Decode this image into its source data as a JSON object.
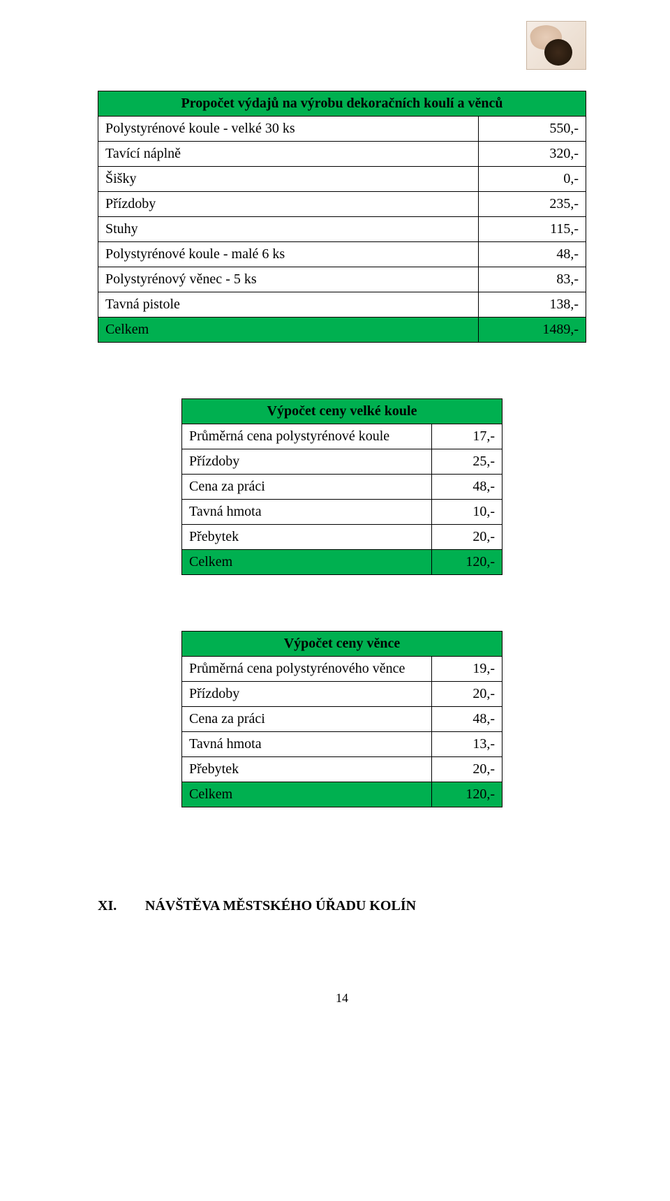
{
  "colors": {
    "header_bg": "#00b050",
    "border": "#000000",
    "page_bg": "#ffffff",
    "text": "#000000"
  },
  "table1": {
    "title": "Propočet výdajů na výrobu dekoračních koulí a věnců",
    "rows": [
      {
        "label": "Polystyrénové koule - velké 30 ks",
        "value": "550,-"
      },
      {
        "label": "Tavící náplně",
        "value": "320,-"
      },
      {
        "label": "Šišky",
        "value": "0,-"
      },
      {
        "label": "Přízdoby",
        "value": "235,-"
      },
      {
        "label": "Stuhy",
        "value": "115,-"
      },
      {
        "label": "Polystyrénové koule - malé 6 ks",
        "value": "48,-"
      },
      {
        "label": "Polystyrénový věnec - 5 ks",
        "value": "83,-"
      },
      {
        "label": "Tavná pistole",
        "value": "138,-"
      }
    ],
    "total": {
      "label": "Celkem",
      "value": "1489,-"
    }
  },
  "table2": {
    "title": "Výpočet ceny velké koule",
    "rows": [
      {
        "label": "Průměrná cena polystyrénové koule",
        "value": "17,-"
      },
      {
        "label": "Přízdoby",
        "value": "25,-"
      },
      {
        "label": "Cena za práci",
        "value": "48,-"
      },
      {
        "label": "Tavná hmota",
        "value": "10,-"
      },
      {
        "label": "Přebytek",
        "value": "20,-"
      }
    ],
    "total": {
      "label": "Celkem",
      "value": "120,-"
    }
  },
  "table3": {
    "title": "Výpočet ceny věnce",
    "rows": [
      {
        "label": "Průměrná cena polystyrénového věnce",
        "value": "19,-"
      },
      {
        "label": "Přízdoby",
        "value": "20,-"
      },
      {
        "label": "Cena za práci",
        "value": "48,-"
      },
      {
        "label": "Tavná hmota",
        "value": "13,-"
      },
      {
        "label": "Přebytek",
        "value": "20,-"
      }
    ],
    "total": {
      "label": "Celkem",
      "value": "120,-"
    }
  },
  "heading": {
    "roman": "XI.",
    "text": "NÁVŠTĚVA MĚSTSKÉHO ÚŘADU KOLÍN"
  },
  "page_number": "14"
}
